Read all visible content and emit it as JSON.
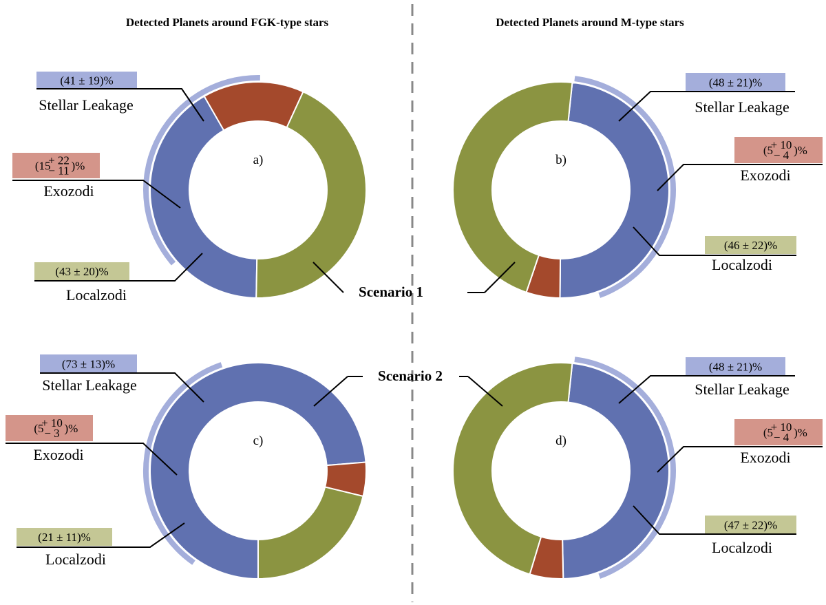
{
  "chart_data": [
    {
      "type": "pie",
      "title": "Detected Planets around FGK-type stars",
      "panel_label": "a)",
      "categories": [
        "Stellar Leakage",
        "Exozodi",
        "Localzodi"
      ],
      "values": [
        41,
        15,
        43
      ],
      "value_labels": [
        "(41 ± 19)%",
        null,
        "(43 ± 20)%"
      ],
      "value_label_parts": [
        null,
        {
          "base": "15",
          "plus": "+ 22",
          "minus": "− 11"
        },
        null
      ]
    },
    {
      "type": "pie",
      "title": "Detected Planets around M-type stars",
      "panel_label": "b)",
      "categories": [
        "Stellar Leakage",
        "Exozodi",
        "Localzodi"
      ],
      "values": [
        48,
        5,
        46
      ],
      "value_labels": [
        "(48 ± 21)%",
        null,
        "(46 ± 22)%"
      ],
      "value_label_parts": [
        null,
        {
          "base": "5",
          "plus": "+ 10",
          "minus": "− 4"
        },
        null
      ]
    },
    {
      "type": "pie",
      "title": "",
      "panel_label": "c)",
      "categories": [
        "Stellar Leakage",
        "Exozodi",
        "Localzodi"
      ],
      "values": [
        73,
        5,
        21
      ],
      "value_labels": [
        "(73 ± 13)%",
        null,
        "(21 ± 11)%"
      ],
      "value_label_parts": [
        null,
        {
          "base": "5",
          "plus": "+ 10",
          "minus": "− 3"
        },
        null
      ]
    },
    {
      "type": "pie",
      "title": "",
      "panel_label": "d)",
      "categories": [
        "Stellar Leakage",
        "Exozodi",
        "Localzodi"
      ],
      "values": [
        48,
        5,
        47
      ],
      "value_labels": [
        "(48 ± 21)%",
        null,
        "(47 ± 22)%"
      ],
      "value_label_parts": [
        null,
        {
          "base": "5",
          "plus": "+ 10",
          "minus": "− 4"
        },
        null
      ]
    }
  ],
  "scenario_labels": [
    "Scenario 1",
    "Scenario 2"
  ],
  "colors": {
    "stellar_leakage": "#6071b0",
    "stellar_leakage_light": "#a4aedb",
    "exozodi": "#a4492c",
    "exozodi_light": "#d4958a",
    "localzodi": "#8b9441",
    "localzodi_light": "#c4c795",
    "divider": "#888888"
  }
}
